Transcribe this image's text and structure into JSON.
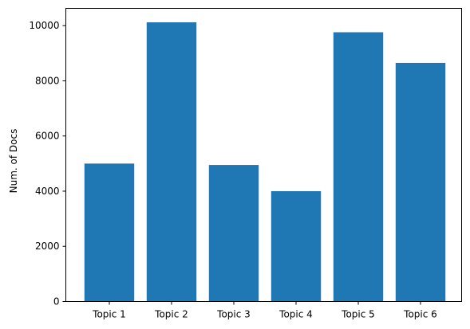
{
  "chart_data": {
    "type": "bar",
    "title": "",
    "xlabel": "",
    "ylabel": "Num. of Docs",
    "categories": [
      "Topic 1",
      "Topic 2",
      "Topic 3",
      "Topic 4",
      "Topic 5",
      "Topic 6"
    ],
    "values": [
      5000,
      10120,
      4950,
      4000,
      9760,
      8650
    ],
    "ylim": [
      0,
      10626
    ],
    "yticks": [
      0,
      2000,
      4000,
      6000,
      8000,
      10000
    ],
    "ytick_labels": [
      "0",
      "2000",
      "4000",
      "6000",
      "8000",
      "10000"
    ],
    "bar_color": "#1f77b4",
    "grid": false,
    "legend": "none"
  }
}
